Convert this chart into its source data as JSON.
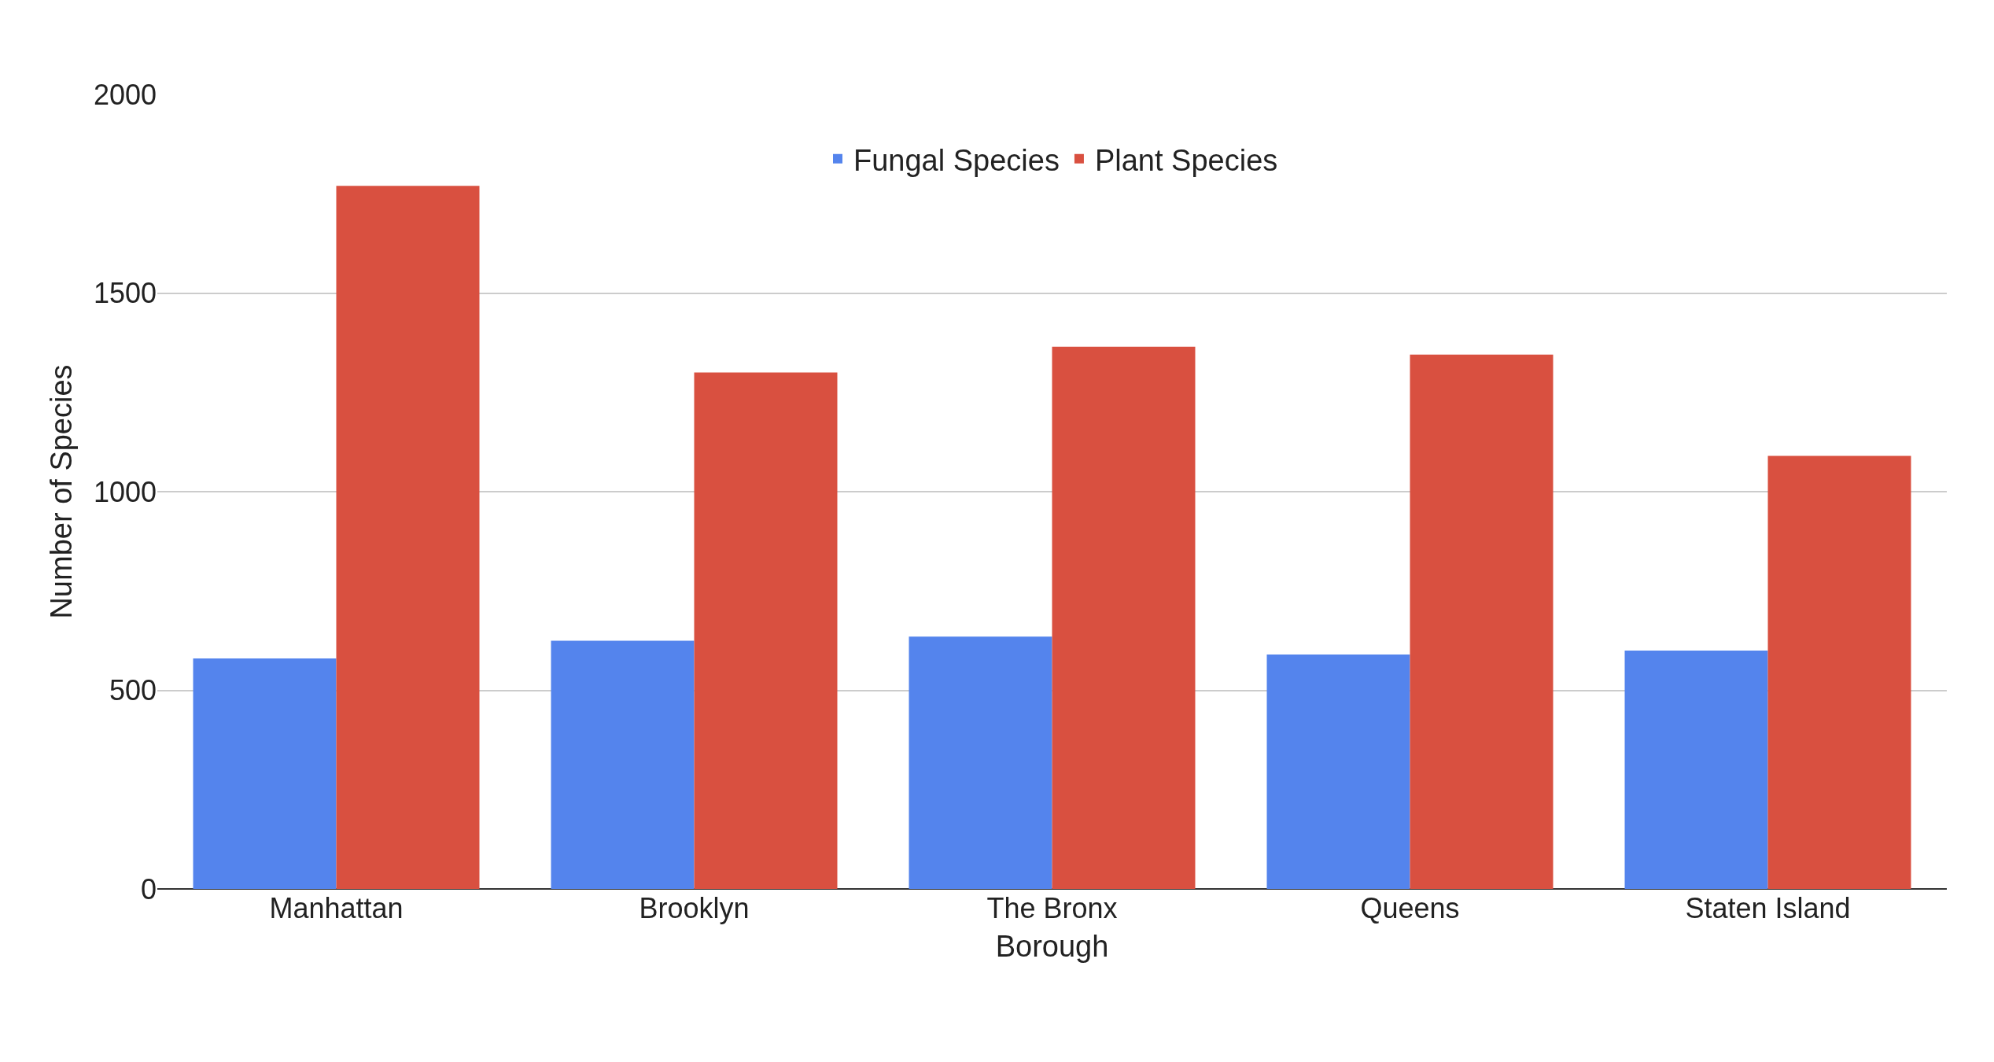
{
  "chart_data": {
    "type": "bar",
    "xlabel": "Borough",
    "ylabel": "Number of Species",
    "categories": [
      "Manhattan",
      "Brooklyn",
      "The Bronx",
      "Queens",
      "Staten Island"
    ],
    "series": [
      {
        "name": "Fungal Species",
        "color": "#5484ed",
        "values": [
          580,
          625,
          635,
          590,
          600
        ]
      },
      {
        "name": "Plant Species",
        "color": "#d95040",
        "values": [
          1770,
          1300,
          1365,
          1345,
          1090
        ]
      }
    ],
    "ylim": [
      0,
      2000
    ],
    "yticks": [
      0,
      500,
      1000,
      1500,
      2000
    ],
    "grid": "y",
    "legend": "top"
  }
}
